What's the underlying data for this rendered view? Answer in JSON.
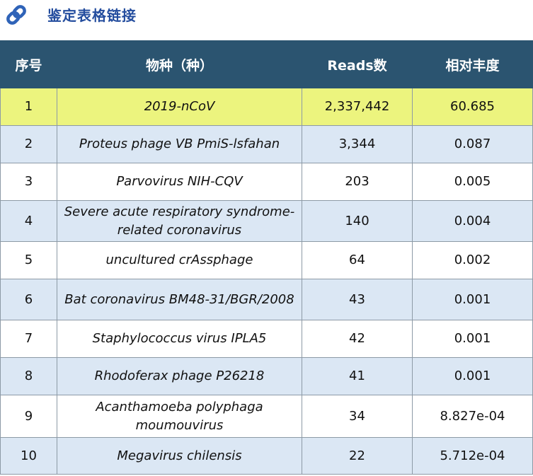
{
  "title": "鉴定表格链接",
  "icons": {
    "title_icon": "link-icon"
  },
  "colors": {
    "title": "#244d9e",
    "header_bg": "#2b5470",
    "highlight_row": "#ecf47e",
    "stripe_row": "#dbe7f4"
  },
  "table": {
    "headers": [
      "序号",
      "物种（种）",
      "Reads数",
      "相对丰度"
    ],
    "rows": [
      {
        "no": "1",
        "species": "2019-nCoV",
        "reads": "2,337,442",
        "abundance": "60.685"
      },
      {
        "no": "2",
        "species": "Proteus phage VB PmiS-lsfahan",
        "reads": "3,344",
        "abundance": "0.087"
      },
      {
        "no": "3",
        "species": "Parvovirus NIH-CQV",
        "reads": "203",
        "abundance": "0.005"
      },
      {
        "no": "4",
        "species": "Severe acute respiratory syndrome-related coronavirus",
        "reads": "140",
        "abundance": "0.004"
      },
      {
        "no": "5",
        "species": "uncultured crAssphage",
        "reads": "64",
        "abundance": "0.002"
      },
      {
        "no": "6",
        "species": "Bat coronavirus BM48-31/BGR/2008",
        "reads": "43",
        "abundance": "0.001"
      },
      {
        "no": "7",
        "species": "Staphylococcus virus IPLA5",
        "reads": "42",
        "abundance": "0.001"
      },
      {
        "no": "8",
        "species": "Rhodoferax phage P26218",
        "reads": "41",
        "abundance": "0.001"
      },
      {
        "no": "9",
        "species": "Acanthamoeba polyphaga moumouvirus",
        "reads": "34",
        "abundance": "8.827e-04"
      },
      {
        "no": "10",
        "species": "Megavirus chilensis",
        "reads": "22",
        "abundance": "5.712e-04"
      }
    ]
  }
}
